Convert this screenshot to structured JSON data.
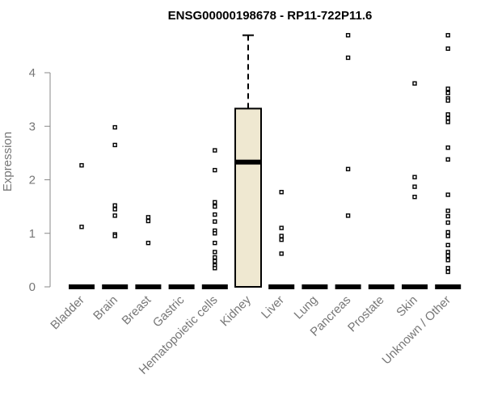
{
  "chart_data": {
    "type": "boxplot",
    "title": "ENSG00000198678 - RP11-722P11.6",
    "xlabel": "",
    "ylabel": "Expression",
    "ylim": [
      0,
      4.75
    ],
    "yticks": [
      0,
      1,
      2,
      3,
      4
    ],
    "grid": false,
    "box_fill": "#efe8d1",
    "outlier_color": "#000000",
    "categories": [
      "Bladder",
      "Brain",
      "Breast",
      "Gastric",
      "Hematopoietic cells",
      "Kidney",
      "Liver",
      "Lung",
      "Pancreas",
      "Prostate",
      "Skin",
      "Unknown / Other"
    ],
    "boxes": [
      {
        "category": "Bladder",
        "q1": 0,
        "median": 0,
        "q3": 0,
        "whisker_low": 0,
        "whisker_high": 0,
        "outliers": [
          2.27,
          1.12
        ]
      },
      {
        "category": "Brain",
        "q1": 0,
        "median": 0,
        "q3": 0,
        "whisker_low": 0,
        "whisker_high": 0,
        "outliers": [
          2.98,
          2.65,
          1.52,
          1.45,
          1.33,
          0.98,
          0.95
        ]
      },
      {
        "category": "Breast",
        "q1": 0,
        "median": 0,
        "q3": 0,
        "whisker_low": 0,
        "whisker_high": 0,
        "outliers": [
          1.3,
          1.23,
          0.82
        ]
      },
      {
        "category": "Gastric",
        "q1": 0,
        "median": 0,
        "q3": 0,
        "whisker_low": 0,
        "whisker_high": 0,
        "outliers": []
      },
      {
        "category": "Hematopoietic cells",
        "q1": 0,
        "median": 0,
        "q3": 0,
        "whisker_low": 0,
        "whisker_high": 0,
        "outliers": [
          2.55,
          2.18,
          1.58,
          1.5,
          1.35,
          1.22,
          1.05,
          1.0,
          0.82,
          0.65,
          0.55,
          0.48,
          0.4,
          0.35
        ]
      },
      {
        "category": "Kidney",
        "q1": 0,
        "median": 2.33,
        "q3": 3.33,
        "whisker_low": 0,
        "whisker_high": 4.7,
        "outliers": []
      },
      {
        "category": "Liver",
        "q1": 0,
        "median": 0,
        "q3": 0,
        "whisker_low": 0,
        "whisker_high": 0,
        "outliers": [
          1.77,
          1.1,
          0.95,
          0.88,
          0.62
        ]
      },
      {
        "category": "Lung",
        "q1": 0,
        "median": 0,
        "q3": 0,
        "whisker_low": 0,
        "whisker_high": 0,
        "outliers": []
      },
      {
        "category": "Pancreas",
        "q1": 0,
        "median": 0,
        "q3": 0,
        "whisker_low": 0,
        "whisker_high": 0,
        "outliers": [
          4.7,
          4.28,
          2.2,
          1.33
        ]
      },
      {
        "category": "Prostate",
        "q1": 0,
        "median": 0,
        "q3": 0,
        "whisker_low": 0,
        "whisker_high": 0,
        "outliers": []
      },
      {
        "category": "Skin",
        "q1": 0,
        "median": 0,
        "q3": 0,
        "whisker_low": 0,
        "whisker_high": 0,
        "outliers": [
          3.8,
          2.05,
          1.87,
          1.68
        ]
      },
      {
        "category": "Unknown / Other",
        "q1": 0,
        "median": 0,
        "q3": 0,
        "whisker_low": 0,
        "whisker_high": 0,
        "outliers": [
          4.7,
          4.45,
          3.7,
          3.62,
          3.52,
          3.48,
          3.22,
          3.15,
          3.08,
          2.6,
          2.38,
          1.72,
          1.42,
          1.32,
          1.2,
          1.02,
          0.95,
          0.78,
          0.65,
          0.58,
          0.5,
          0.35,
          0.28
        ]
      }
    ]
  }
}
